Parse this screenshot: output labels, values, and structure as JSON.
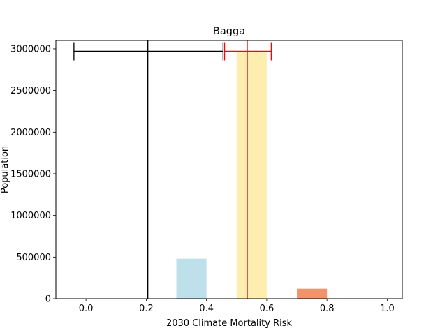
{
  "chart_data": {
    "type": "bar",
    "title": "Bagga",
    "xlabel": "2030 Climate Mortality Risk",
    "ylabel": "Population",
    "xlim": [
      -0.1,
      1.05
    ],
    "ylim": [
      0,
      3100000
    ],
    "xticks": [
      0.0,
      0.2,
      0.4,
      0.6,
      0.8,
      1.0
    ],
    "xtick_labels": [
      "0.0",
      "0.2",
      "0.4",
      "0.6",
      "0.8",
      "1.0"
    ],
    "yticks": [
      0,
      500000,
      1000000,
      1500000,
      2000000,
      2500000,
      3000000
    ],
    "ytick_labels": [
      "0",
      "500000",
      "1000000",
      "1500000",
      "2000000",
      "2500000",
      "3000000"
    ],
    "grid": false,
    "bars": [
      {
        "x_start": 0.3,
        "x_end": 0.4,
        "value": 480000,
        "color": "#add8e6"
      },
      {
        "x_start": 0.5,
        "x_end": 0.6,
        "value": 2970000,
        "color": "#fde99b"
      },
      {
        "x_start": 0.7,
        "x_end": 0.8,
        "value": 120000,
        "color": "#f0784a"
      }
    ],
    "vlines": [
      {
        "x": 0.205,
        "color": "#000000"
      },
      {
        "x": 0.535,
        "color": "#ff0000"
      }
    ],
    "error_bars": [
      {
        "center": 0.205,
        "low": -0.04,
        "high": 0.455,
        "y": 2970000,
        "color": "#000000"
      },
      {
        "center": 0.535,
        "low": 0.46,
        "high": 0.615,
        "y": 2970000,
        "color": "#ff0000"
      }
    ]
  }
}
